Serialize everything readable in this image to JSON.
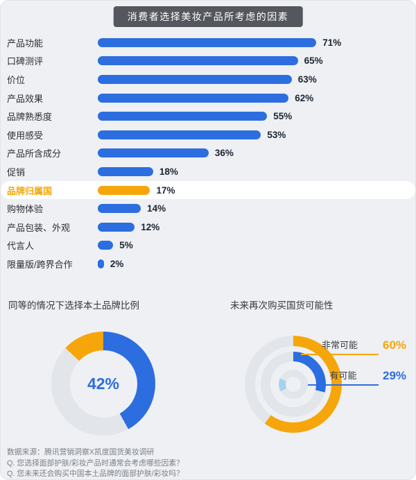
{
  "colors": {
    "blue": "#2c6de0",
    "orange": "#f6a60a",
    "track": "#e2e5ea",
    "light_blue": "#a6d0f0",
    "title_bar_bg": "#54575d",
    "page_bg": "#eef0f3"
  },
  "header": {
    "title": "消费者选择美妆产品所考虑的因素"
  },
  "chart_data": [
    {
      "type": "bar",
      "orientation": "horizontal",
      "title": "消费者选择美妆产品所考虑的因素",
      "categories": [
        "产品功能",
        "口碑测评",
        "价位",
        "产品效果",
        "品牌熟悉度",
        "使用感受",
        "产品所含成分",
        "促销",
        "品牌归属国",
        "购物体验",
        "产品包装、外观",
        "代言人",
        "限量版/跨界合作"
      ],
      "values": [
        71,
        65,
        63,
        62,
        55,
        53,
        36,
        18,
        17,
        14,
        12,
        5,
        2
      ],
      "value_labels": [
        "71%",
        "65%",
        "63%",
        "62%",
        "55%",
        "53%",
        "36%",
        "18%",
        "17%",
        "14%",
        "12%",
        "5%",
        "2%"
      ],
      "highlight_index": 8,
      "xlim": [
        0,
        100
      ],
      "bar_color": "#2c6de0",
      "highlight_color": "#f6a60a",
      "legend_position": "none",
      "grid": false
    },
    {
      "type": "pie",
      "subtype": "donut",
      "title": "同等的情况下选择本土品牌比例",
      "center_label": "42%",
      "center_value": 42,
      "segments": [
        {
          "value": 42,
          "color": "#2c6de0"
        },
        {
          "value": 45,
          "color": "#e2e5ea"
        },
        {
          "value": 13,
          "color": "#f6a60a"
        }
      ]
    },
    {
      "type": "pie",
      "subtype": "concentric-donut",
      "title": "未来再次购买国货可能性",
      "rings": [
        {
          "label": "非常可能",
          "value": 60,
          "value_label": "60%",
          "color": "#f6a60a"
        },
        {
          "label": "有可能",
          "value": 29,
          "value_label": "29%",
          "color": "#2c6de0"
        },
        {
          "label": "",
          "value": 15,
          "value_label": "",
          "color": "#a6d0f0"
        }
      ]
    }
  ],
  "footer": {
    "lines": [
      "数据来源：腾讯营销洞察X凯度国货美妆调研",
      "Q. 您选择面部护肤/彩妆产品时通常会考虑哪些因素？",
      "Q. 您未来还会购买中国本土品牌的面部护肤/彩妆吗？"
    ]
  }
}
